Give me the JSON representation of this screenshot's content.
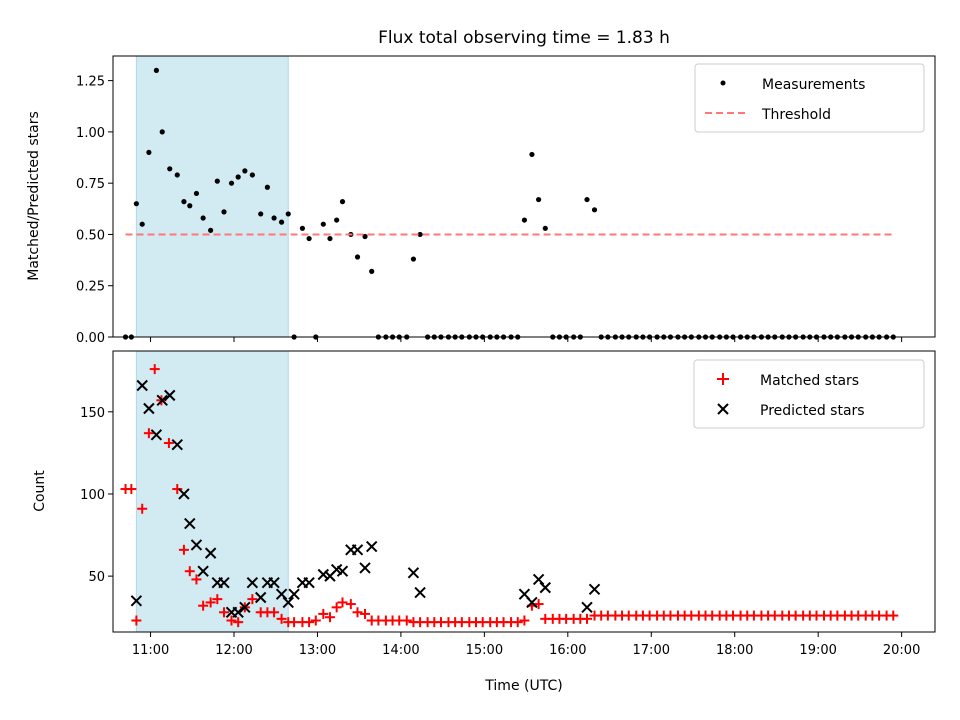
{
  "chart_data": [
    {
      "type": "scatter",
      "title": "Flux total observing time = 1.83 h",
      "ylabel": "Matched/Predicted stars",
      "xlabel": "",
      "xlim": [
        10.55,
        20.4
      ],
      "ylim": [
        0,
        1.37
      ],
      "yticks": [
        0.0,
        0.25,
        0.5,
        0.75,
        1.0,
        1.25
      ],
      "ytick_labels": [
        "0.00",
        "0.25",
        "0.50",
        "0.75",
        "1.00",
        "1.25"
      ],
      "legend_position": "top-right",
      "shaded_span": {
        "x": [
          10.83,
          12.65
        ],
        "color": "#add8e6"
      },
      "series": [
        {
          "name": "Measurements",
          "marker": "dot",
          "color": "#000000",
          "x": [
            10.7,
            10.77,
            10.83,
            10.9,
            10.98,
            11.07,
            11.14,
            11.23,
            11.32,
            11.4,
            11.47,
            11.55,
            11.63,
            11.72,
            11.8,
            11.88,
            11.97,
            12.05,
            12.13,
            12.22,
            12.32,
            12.4,
            12.48,
            12.57,
            12.65,
            12.72,
            12.82,
            12.9,
            12.98,
            13.07,
            13.15,
            13.23,
            13.3,
            13.4,
            13.48,
            13.57,
            13.65,
            13.73,
            13.82,
            13.9,
            13.98,
            14.07,
            14.15,
            14.23,
            14.32,
            14.4,
            14.48,
            14.57,
            14.65,
            14.73,
            14.82,
            14.9,
            14.98,
            15.07,
            15.15,
            15.23,
            15.32,
            15.4,
            15.48,
            15.57,
            15.65,
            15.73,
            15.82,
            15.9,
            15.98,
            16.07,
            16.15,
            16.23,
            16.32,
            16.4,
            16.48,
            16.57,
            16.65,
            16.73,
            16.82,
            16.9,
            16.98,
            17.07,
            17.15,
            17.23,
            17.32,
            17.4,
            17.48,
            17.57,
            17.65,
            17.73,
            17.82,
            17.9,
            17.98,
            18.07,
            18.15,
            18.23,
            18.32,
            18.4,
            18.48,
            18.57,
            18.65,
            18.73,
            18.82,
            18.9,
            18.98,
            19.07,
            19.15,
            19.23,
            19.32,
            19.4,
            19.48,
            19.57,
            19.65,
            19.73,
            19.82,
            19.9
          ],
          "y": [
            0.0,
            0.0,
            0.65,
            0.55,
            0.9,
            1.3,
            1.0,
            0.82,
            0.79,
            0.66,
            0.64,
            0.7,
            0.58,
            0.52,
            0.76,
            0.61,
            0.75,
            0.78,
            0.81,
            0.79,
            0.6,
            0.73,
            0.58,
            0.56,
            0.6,
            0.0,
            0.53,
            0.48,
            0.0,
            0.55,
            0.48,
            0.57,
            0.66,
            0.5,
            0.39,
            0.49,
            0.32,
            0.0,
            0.0,
            0.0,
            0.0,
            0.0,
            0.38,
            0.5,
            0.0,
            0.0,
            0.0,
            0.0,
            0.0,
            0.0,
            0.0,
            0.0,
            0.0,
            0.0,
            0.0,
            0.0,
            0.0,
            0.0,
            0.57,
            0.89,
            0.67,
            0.53,
            0.0,
            0.0,
            0.0,
            0.0,
            0.0,
            0.67,
            0.62,
            0.0,
            0.0,
            0.0,
            0.0,
            0.0,
            0.0,
            0.0,
            0.0,
            0.0,
            0.0,
            0.0,
            0.0,
            0.0,
            0.0,
            0.0,
            0.0,
            0.0,
            0.0,
            0.0,
            0.0,
            0.0,
            0.0,
            0.0,
            0.0,
            0.0,
            0.0,
            0.0,
            0.0,
            0.0,
            0.0,
            0.0,
            0.0,
            0.0,
            0.0,
            0.0,
            0.0,
            0.0,
            0.0,
            0.0,
            0.0,
            0.0,
            0.0,
            0.0
          ]
        },
        {
          "name": "Threshold",
          "marker": "dashed-line",
          "color": "#ff7777",
          "x": [
            10.7,
            19.9
          ],
          "y": [
            0.5,
            0.5
          ]
        }
      ]
    },
    {
      "type": "scatter",
      "title": "",
      "ylabel": "Count",
      "xlabel": "Time (UTC)",
      "xlim": [
        10.55,
        20.4
      ],
      "ylim": [
        16,
        187
      ],
      "yticks": [
        50,
        100,
        150
      ],
      "ytick_labels": [
        "50",
        "100",
        "150"
      ],
      "xticks": [
        11,
        12,
        13,
        14,
        15,
        16,
        17,
        18,
        19,
        20
      ],
      "xtick_labels": [
        "11:00",
        "12:00",
        "13:00",
        "14:00",
        "15:00",
        "16:00",
        "17:00",
        "18:00",
        "19:00",
        "20:00"
      ],
      "legend_position": "top-right",
      "shaded_span": {
        "x": [
          10.83,
          12.65
        ],
        "color": "#add8e6"
      },
      "series": [
        {
          "name": "Matched stars",
          "marker": "plus",
          "color": "#ff0000",
          "x": [
            10.7,
            10.77,
            10.83,
            10.9,
            10.98,
            11.05,
            11.13,
            11.22,
            11.32,
            11.4,
            11.47,
            11.55,
            11.63,
            11.72,
            11.8,
            11.88,
            11.97,
            12.05,
            12.13,
            12.22,
            12.32,
            12.4,
            12.48,
            12.57,
            12.65,
            12.72,
            12.82,
            12.9,
            12.98,
            13.07,
            13.15,
            13.23,
            13.3,
            13.4,
            13.48,
            13.57,
            13.65,
            13.73,
            13.82,
            13.9,
            13.98,
            14.07,
            14.15,
            14.23,
            14.32,
            14.4,
            14.48,
            14.57,
            14.65,
            14.73,
            14.82,
            14.9,
            14.98,
            15.07,
            15.15,
            15.23,
            15.32,
            15.4,
            15.48,
            15.57,
            15.65,
            15.73,
            15.82,
            15.9,
            15.98,
            16.07,
            16.15,
            16.23,
            16.32,
            16.4,
            16.48,
            16.57,
            16.65,
            16.73,
            16.82,
            16.9,
            16.98,
            17.07,
            17.15,
            17.23,
            17.32,
            17.4,
            17.48,
            17.57,
            17.65,
            17.73,
            17.82,
            17.9,
            17.98,
            18.07,
            18.15,
            18.23,
            18.32,
            18.4,
            18.48,
            18.57,
            18.65,
            18.73,
            18.82,
            18.9,
            18.98,
            19.07,
            19.15,
            19.23,
            19.32,
            19.4,
            19.48,
            19.57,
            19.65,
            19.73,
            19.82,
            19.9
          ],
          "y": [
            103,
            103,
            23,
            91,
            137,
            176,
            157,
            131,
            103,
            66,
            53,
            48,
            32,
            34,
            36,
            28,
            23,
            22,
            31,
            36,
            28,
            28,
            28,
            24,
            22,
            22,
            22,
            22,
            23,
            27,
            25,
            31,
            34,
            33,
            28,
            27,
            23,
            23,
            23,
            23,
            23,
            23,
            22,
            22,
            22,
            22,
            22,
            22,
            22,
            22,
            22,
            22,
            22,
            22,
            22,
            22,
            22,
            22,
            23,
            32,
            33,
            24,
            24,
            24,
            24,
            24,
            24,
            24,
            26,
            26,
            26,
            26,
            26,
            26,
            26,
            26,
            26,
            26,
            26,
            26,
            26,
            26,
            26,
            26,
            26,
            26,
            26,
            26,
            26,
            26,
            26,
            26,
            26,
            26,
            26,
            26,
            26,
            26,
            26,
            26,
            26,
            26,
            26,
            26,
            26,
            26,
            26,
            26,
            26,
            26,
            26,
            26
          ]
        },
        {
          "name": "Predicted stars",
          "marker": "x",
          "color": "#000000",
          "x": [
            10.83,
            10.9,
            10.98,
            11.07,
            11.14,
            11.23,
            11.32,
            11.4,
            11.47,
            11.55,
            11.63,
            11.72,
            11.8,
            11.88,
            11.97,
            12.05,
            12.13,
            12.22,
            12.32,
            12.4,
            12.48,
            12.57,
            12.65,
            12.72,
            12.82,
            12.9,
            13.07,
            13.15,
            13.23,
            13.3,
            13.4,
            13.48,
            13.57,
            13.65,
            14.15,
            14.23,
            15.48,
            15.57,
            15.65,
            15.73,
            16.23,
            16.32
          ],
          "y": [
            35,
            166,
            152,
            136,
            157,
            160,
            130,
            100,
            82,
            69,
            53,
            64,
            46,
            46,
            28,
            28,
            31,
            46,
            37,
            46,
            46,
            39,
            34,
            39,
            46,
            46,
            51,
            50,
            54,
            53,
            66,
            66,
            55,
            68,
            52,
            40,
            39,
            34,
            48,
            43,
            31,
            42
          ]
        }
      ]
    }
  ]
}
